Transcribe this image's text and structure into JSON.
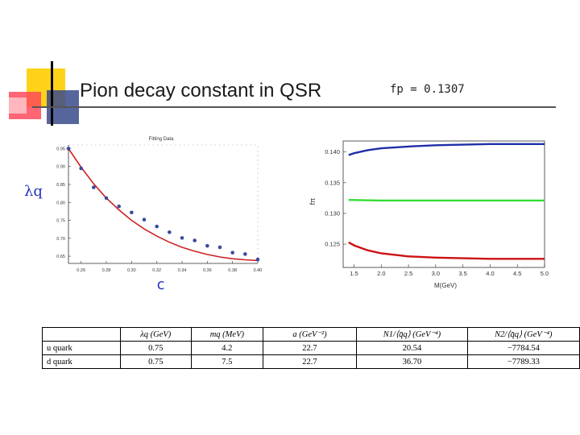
{
  "slide": {
    "title": "Pion decay constant in QSR",
    "fp_value": "fp = 0.1307",
    "lambda_symbol": "λq",
    "c_symbol": "c"
  },
  "chart_data": [
    {
      "type": "scatter",
      "title": "Fitting Data",
      "xlabel": "c",
      "ylabel": "λq",
      "xlim": [
        0.25,
        0.4
      ],
      "ylim": [
        0.63,
        0.96
      ],
      "x_ticks": [
        "0.26",
        "0.28",
        "0.30",
        "0.32",
        "0.34",
        "0.36",
        "0.38",
        "0.40"
      ],
      "y_ticks": [
        "0.95",
        "0.90",
        "0.85",
        "0.80",
        "0.75",
        "0.70",
        "0.65"
      ],
      "series": [
        {
          "name": "data",
          "x": [
            0.25,
            0.26,
            0.27,
            0.28,
            0.29,
            0.3,
            0.31,
            0.32,
            0.33,
            0.34,
            0.35,
            0.36,
            0.37,
            0.38,
            0.39,
            0.4
          ],
          "y": [
            0.95,
            0.895,
            0.842,
            0.812,
            0.789,
            0.772,
            0.752,
            0.733,
            0.717,
            0.701,
            0.694,
            0.679,
            0.675,
            0.66,
            0.656,
            0.641
          ]
        },
        {
          "name": "fit",
          "x": [
            0.25,
            0.26,
            0.27,
            0.28,
            0.29,
            0.3,
            0.31,
            0.32,
            0.33,
            0.34,
            0.35,
            0.36,
            0.37,
            0.38,
            0.39,
            0.4
          ],
          "y": [
            0.95,
            0.898,
            0.852,
            0.812,
            0.779,
            0.75,
            0.726,
            0.706,
            0.689,
            0.675,
            0.664,
            0.655,
            0.648,
            0.643,
            0.64,
            0.638
          ]
        }
      ],
      "colors": {
        "data": "#3a4aa0",
        "fit": "#cc2222"
      }
    },
    {
      "type": "line",
      "xlabel": "M(GeV)",
      "ylabel": "fπ",
      "xlim": [
        1.3,
        5.0
      ],
      "ylim": [
        0.1212,
        0.1418
      ],
      "x_ticks": [
        "1.5",
        "2.0",
        "2.5",
        "3.0",
        "3.5",
        "4.0",
        "4.5",
        "5.0"
      ],
      "y_ticks": [
        "0.140",
        "0.135",
        "0.130",
        "0.125"
      ],
      "series": [
        {
          "name": "upper",
          "x": [
            1.4,
            1.5,
            1.75,
            2.0,
            2.5,
            3.0,
            3.5,
            4.0,
            4.5,
            5.0
          ],
          "y": [
            0.1395,
            0.1398,
            0.1403,
            0.1406,
            0.1409,
            0.1411,
            0.1412,
            0.1413,
            0.1413,
            0.1413
          ]
        },
        {
          "name": "middle",
          "x": [
            1.4,
            2.0,
            2.5,
            3.0,
            3.5,
            4.0,
            4.5,
            5.0
          ],
          "y": [
            0.1322,
            0.1321,
            0.1321,
            0.1321,
            0.1321,
            0.1321,
            0.1321,
            0.1321
          ]
        },
        {
          "name": "lower",
          "x": [
            1.4,
            1.5,
            1.75,
            2.0,
            2.5,
            3.0,
            3.5,
            4.0,
            4.5,
            5.0
          ],
          "y": [
            0.1253,
            0.1248,
            0.124,
            0.1235,
            0.123,
            0.1228,
            0.1227,
            0.1226,
            0.1226,
            0.1226
          ]
        }
      ],
      "colors": {
        "upper": "#1f2ea8",
        "middle": "#33dd33",
        "lower": "#cc1111"
      }
    }
  ],
  "table": {
    "headers": [
      "",
      "λq (GeV)",
      "mq (MeV)",
      "a (GeV⁻²)",
      "N1/⟨q̄q⟩ (GeV⁻⁴)",
      "N2/⟨q̄q⟩ (GeV⁻⁴)"
    ],
    "rows": [
      [
        "u quark",
        "0.75",
        "4.2",
        "22.7",
        "20.54",
        "−7784.54"
      ],
      [
        "d quark",
        "0.75",
        "7.5",
        "22.7",
        "36.70",
        "−7789.33"
      ]
    ]
  }
}
